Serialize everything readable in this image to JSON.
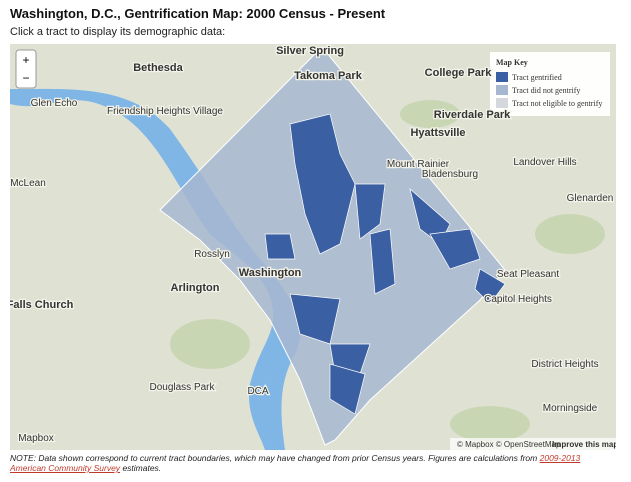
{
  "header": {
    "title": "Washington, D.C., Gentrification Map: 2000 Census - Present",
    "subtitle": "Click a tract to display its demographic data:"
  },
  "controls": {
    "zoom_in": "+",
    "zoom_out": "−"
  },
  "legend": {
    "title": "Map Key",
    "items": [
      "Tract gentrified",
      "Tract did not gentrify",
      "Tract not eligible to gentrify"
    ],
    "colors": [
      "#3b5fa3",
      "#a7b7cf",
      "#d4d7db"
    ]
  },
  "places": [
    "Silver Spring",
    "Bethesda",
    "Takoma Park",
    "College Park",
    "Riverdale Park",
    "Hyattsville",
    "Friendship Heights Village",
    "Glen Echo",
    "Mount Rainier",
    "Bladensburg",
    "Landover Hills",
    "Glenarden",
    "McLean",
    "Rosslyn",
    "Washington",
    "Arlington",
    "Falls Church",
    "Seat Pleasant",
    "Capitol Heights",
    "District Heights",
    "Douglass Park",
    "DCA",
    "Morningside",
    "Mapbox"
  ],
  "attribution": {
    "text": "© Mapbox © OpenStreetMap",
    "link": "Improve this map"
  },
  "note": {
    "text": "NOTE: Data shown correspond to current tract boundaries, which may have changed from prior Census years. Figures are calculations from",
    "link": "2009-2013 American Community Survey",
    "end": "estimates."
  }
}
